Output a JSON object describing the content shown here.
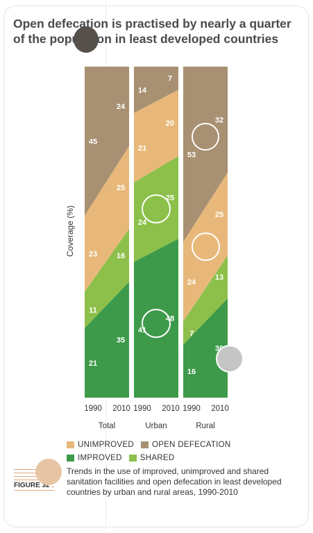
{
  "title": {
    "line1": "Open defecation is practised by nearly a quarter",
    "line2": "of the population in least developed countries"
  },
  "figure_label": "FIGURE 32",
  "caption": "Trends in the use of improved, unimproved and shared sanitation facilities and open defecation in least developed countries by urban and rural areas, 1990-2010",
  "colors": {
    "improved": "#3d9a4a",
    "shared": "#8cc04a",
    "unimproved": "#e8b87a",
    "open_defecation": "#a89072"
  },
  "legend": {
    "unimproved": "UNIMPROVED",
    "open_defecation": "OPEN DEFECATION",
    "improved": "IMPROVED",
    "shared": "SHARED"
  },
  "chart_data": {
    "type": "area",
    "ylabel": "Coverage (%)",
    "ylim": [
      0,
      100
    ],
    "stack_order": [
      "improved",
      "shared",
      "unimproved",
      "open_defecation"
    ],
    "panels": [
      {
        "name": "Total",
        "x": [
          "1990",
          "2010"
        ],
        "series": {
          "improved": [
            21,
            35
          ],
          "shared": [
            11,
            16
          ],
          "unimproved": [
            23,
            25
          ],
          "open_defecation": [
            45,
            24
          ]
        }
      },
      {
        "name": "Urban",
        "x": [
          "1990",
          "2010"
        ],
        "series": {
          "improved": [
            41,
            48
          ],
          "shared": [
            24,
            25
          ],
          "unimproved": [
            21,
            20
          ],
          "open_defecation": [
            14,
            7
          ]
        }
      },
      {
        "name": "Rural",
        "x": [
          "1990",
          "2010"
        ],
        "series": {
          "improved": [
            16,
            30
          ],
          "shared": [
            7,
            13
          ],
          "unimproved": [
            24,
            25
          ],
          "open_defecation": [
            53,
            32
          ]
        }
      }
    ]
  }
}
